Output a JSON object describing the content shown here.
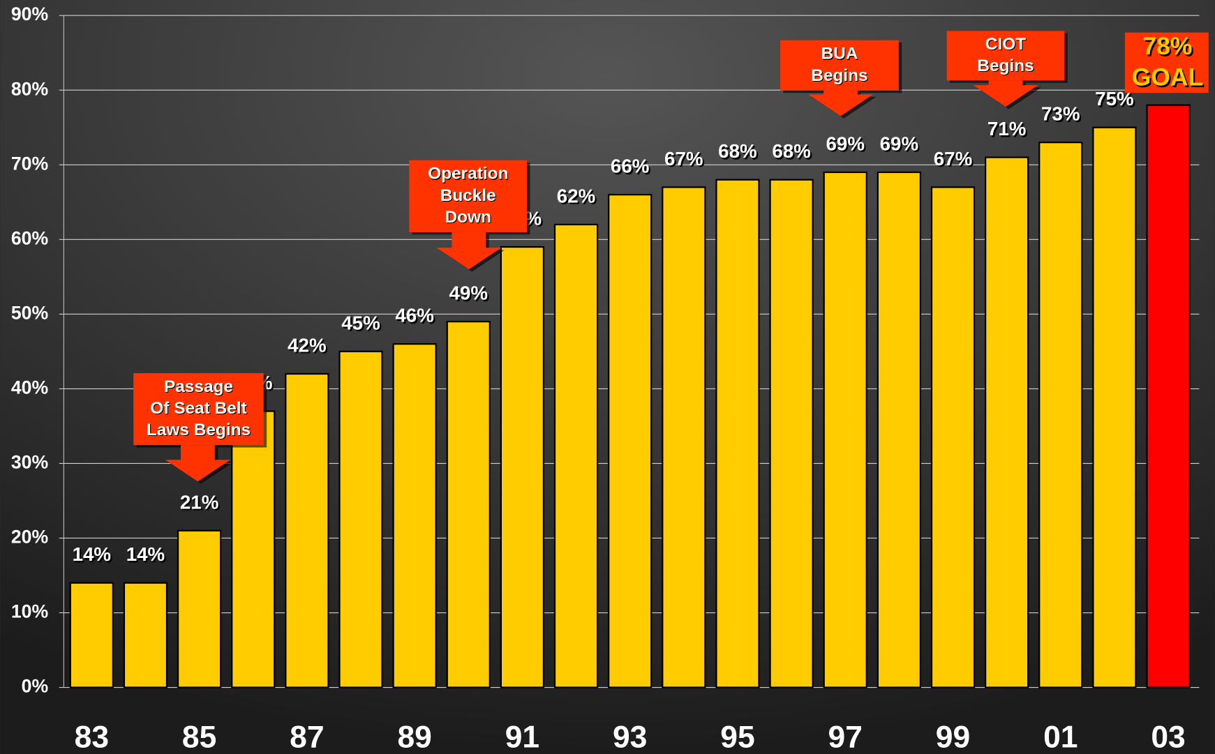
{
  "chart_data": {
    "type": "bar",
    "categories": [
      "83",
      null,
      "85",
      null,
      "87",
      null,
      "89",
      null,
      "91",
      null,
      "93",
      null,
      "95",
      null,
      "97",
      null,
      "99",
      null,
      "01",
      null,
      "03"
    ],
    "values": [
      14,
      14,
      21,
      37,
      42,
      45,
      46,
      49,
      59,
      62,
      66,
      67,
      68,
      68,
      69,
      69,
      67,
      71,
      73,
      75,
      78
    ],
    "value_labels": [
      "14%",
      "14%",
      "21%",
      "37%",
      "42%",
      "45%",
      "46%",
      "49%",
      "59%",
      "62%",
      "66%",
      "67%",
      "68%",
      "68%",
      "69%",
      "69%",
      "67%",
      "71%",
      "73%",
      "75%",
      "78%"
    ],
    "colors": [
      "#ffcc00",
      "#ffcc00",
      "#ffcc00",
      "#ffcc00",
      "#ffcc00",
      "#ffcc00",
      "#ffcc00",
      "#ffcc00",
      "#ffcc00",
      "#ffcc00",
      "#ffcc00",
      "#ffcc00",
      "#ffcc00",
      "#ffcc00",
      "#ffcc00",
      "#ffcc00",
      "#ffcc00",
      "#ffcc00",
      "#ffcc00",
      "#ffcc00",
      "#ff0000"
    ],
    "ylim": [
      0,
      90
    ],
    "yticks": [
      {
        "value": 0,
        "label": "0%"
      },
      {
        "value": 10,
        "label": "10%"
      },
      {
        "value": 20,
        "label": "20%"
      },
      {
        "value": 30,
        "label": "30%"
      },
      {
        "value": 40,
        "label": "40%"
      },
      {
        "value": 50,
        "label": "50%"
      },
      {
        "value": 60,
        "label": "60%"
      },
      {
        "value": 70,
        "label": "70%"
      },
      {
        "value": 80,
        "label": "80%"
      },
      {
        "value": 90,
        "label": "90%"
      }
    ],
    "grid": true,
    "annotations": [
      {
        "text": [
          "Passage",
          "Of Seat Belt",
          "Laws Begins"
        ]
      },
      {
        "text": [
          "Operation",
          "Buckle",
          "Down"
        ]
      },
      {
        "text": [
          "BUA",
          "Begins"
        ]
      },
      {
        "text": [
          "CIOT",
          "Begins"
        ]
      },
      {
        "text": [
          "GOAL"
        ]
      }
    ]
  }
}
